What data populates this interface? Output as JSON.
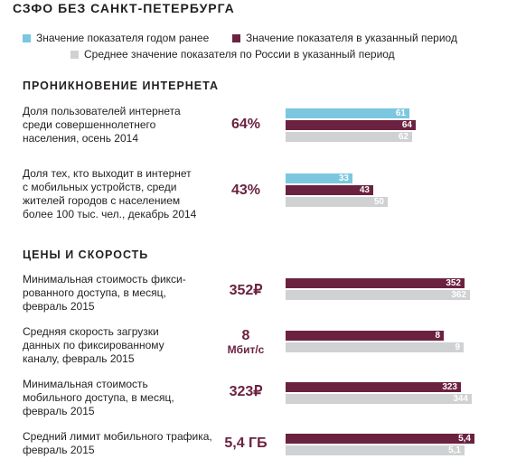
{
  "title": "СЗФО БЕЗ САНКТ-ПЕТЕРБУРГА",
  "legend": [
    {
      "label": "Значение показателя годом ранее",
      "color": "#7bc7df"
    },
    {
      "label": "Значение показателя в указанный период",
      "color": "#6b2240"
    },
    {
      "label": "Среднее значение показателя по России в указанный период",
      "color": "#cfd1d2"
    }
  ],
  "sections": [
    {
      "title": "ПРОНИКНОВЕНИЕ ИНТЕРНЕТА"
    },
    {
      "title": "ЦЕНЫ И СКОРОСТЬ"
    }
  ],
  "chart_data": [
    {
      "type": "bar",
      "label": "Доля пользователей интернета\nсреди совершеннолетнего\nнаселения, осень 2014",
      "headline": "64%",
      "headline_sub": "",
      "values": [
        {
          "series": "prev",
          "value": 61,
          "text": "61"
        },
        {
          "series": "cur",
          "value": 64,
          "text": "64"
        },
        {
          "series": "avg",
          "value": 62,
          "text": "62"
        }
      ]
    },
    {
      "type": "bar",
      "label": "Доля тех, кто выходит в интернет\nс мобильных устройств, среди\nжителей городов с населением\nболее 100 тыс. чел., декабрь 2014",
      "headline": "43%",
      "headline_sub": "",
      "values": [
        {
          "series": "prev",
          "value": 33,
          "text": "33"
        },
        {
          "series": "cur",
          "value": 43,
          "text": "43"
        },
        {
          "series": "avg",
          "value": 50,
          "text": "50"
        }
      ]
    },
    {
      "type": "bar",
      "label": "Минимальная стоимость фикси-\nрованного доступа, в месяц,\nфевраль 2015",
      "headline": "352₽",
      "headline_sub": "",
      "values": [
        {
          "series": "cur",
          "value": 352,
          "text": "352"
        },
        {
          "series": "avg",
          "value": 362,
          "text": "362"
        }
      ]
    },
    {
      "type": "bar",
      "label": "Средняя скорость загрузки\nданных по фиксированному\nканалу, февраль 2015",
      "headline": "8",
      "headline_sub": "Мбит/с",
      "values": [
        {
          "series": "cur",
          "value": 8,
          "text": "8"
        },
        {
          "series": "avg",
          "value": 9,
          "text": "9"
        }
      ]
    },
    {
      "type": "bar",
      "label": "Минимальная стоимость\nмобильного доступа, в месяц,\nфевраль 2015",
      "headline": "323₽",
      "headline_sub": "",
      "values": [
        {
          "series": "cur",
          "value": 323,
          "text": "323"
        },
        {
          "series": "avg",
          "value": 344,
          "text": "344"
        }
      ]
    },
    {
      "type": "bar",
      "label": "Средний лимит мобильного трафика,\nфевраль 2015",
      "headline": "5,4 ГБ",
      "headline_sub": "",
      "values": [
        {
          "series": "cur",
          "value": 5.4,
          "text": "5,4"
        },
        {
          "series": "avg",
          "value": 5.1,
          "text": "5,1"
        }
      ]
    }
  ]
}
